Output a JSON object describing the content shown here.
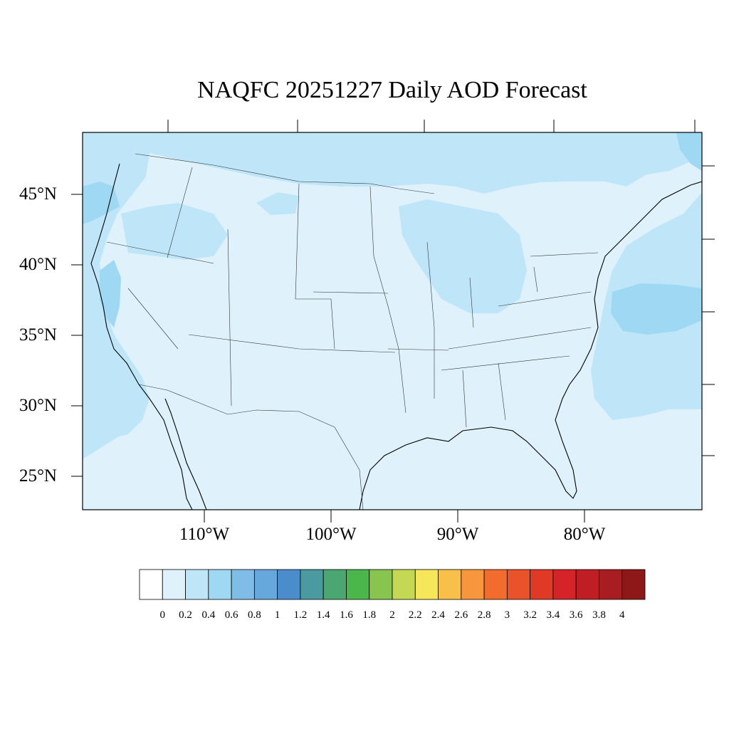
{
  "title": "NAQFC 20251227 Daily AOD Forecast",
  "map": {
    "projection": "lambert-like",
    "lat_ticks": [
      "45°N",
      "40°N",
      "35°N",
      "30°N",
      "25°N"
    ],
    "lon_ticks": [
      "110°W",
      "100°W",
      "90°W",
      "80°W"
    ],
    "field": "AOD",
    "dominant_bin": "0.2–0.4 over ocean/coasts, 0–0.2 over land"
  },
  "colorbar": {
    "labels": [
      "0",
      "0.2",
      "0.4",
      "0.6",
      "0.8",
      "1",
      "1.2",
      "1.4",
      "1.6",
      "1.8",
      "2",
      "2.2",
      "2.4",
      "2.6",
      "2.8",
      "3",
      "3.2",
      "3.4",
      "3.6",
      "3.8",
      "4"
    ],
    "colors": [
      "#ffffff",
      "#dff2fb",
      "#bfe6f8",
      "#9fd8f3",
      "#80bde6",
      "#66a7dc",
      "#4b8dcb",
      "#4a9aa0",
      "#4aa771",
      "#4bb64b",
      "#87c54f",
      "#c5d854",
      "#f6e65a",
      "#f8bf4b",
      "#f7963d",
      "#f36b2d",
      "#ea5229",
      "#e03a26",
      "#d42429",
      "#be1e24",
      "#a81d21",
      "#8e1818"
    ]
  }
}
